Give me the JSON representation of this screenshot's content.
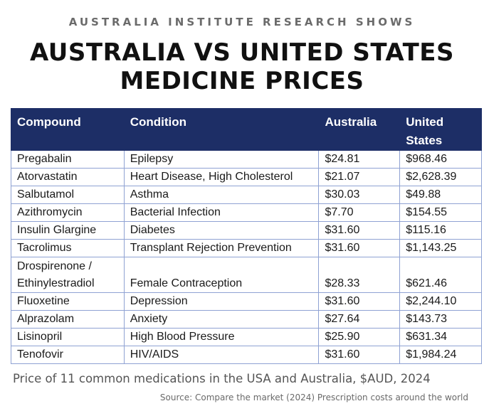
{
  "header": {
    "kicker": "AUSTRALIA INSTITUTE RESEARCH SHOWS",
    "title_line1": "AUSTRALIA VS UNITED STATES",
    "title_line2": "MEDICINE PRICES"
  },
  "table": {
    "columns": [
      "Compound",
      "Condition",
      "Australia",
      "United States"
    ],
    "header_color": "#1d2e66",
    "rows": [
      {
        "compound": "Pregabalin",
        "condition": "Epilepsy",
        "australia": "$24.81",
        "united_states": "$968.46"
      },
      {
        "compound": "Atorvastatin",
        "condition": "Heart Disease, High Cholesterol",
        "australia": "$21.07",
        "united_states": "$2,628.39"
      },
      {
        "compound": "Salbutamol",
        "condition": "Asthma",
        "australia": "$30.03",
        "united_states": "$49.88"
      },
      {
        "compound": "Azithromycin",
        "condition": "Bacterial Infection",
        "australia": "$7.70",
        "united_states": "$154.55"
      },
      {
        "compound": "Insulin Glargine",
        "condition": "Diabetes",
        "australia": "$31.60",
        "united_states": "$115.16"
      },
      {
        "compound": "Tacrolimus",
        "condition": "Transplant Rejection Prevention",
        "australia": "$31.60",
        "united_states": "$1,143.25"
      },
      {
        "compound_line1": "Drospirenone /",
        "compound_line2": "Ethinylestradiol",
        "condition": "Female Contraception",
        "australia": "$28.33",
        "united_states": "$621.46"
      },
      {
        "compound": "Fluoxetine",
        "condition": "Depression",
        "australia": "$31.60",
        "united_states": "$2,244.10"
      },
      {
        "compound": "Alprazolam",
        "condition": "Anxiety",
        "australia": "$27.64",
        "united_states": "$143.73"
      },
      {
        "compound": "Lisinopril",
        "condition": "High Blood Pressure",
        "australia": "$25.90",
        "united_states": "$631.34"
      },
      {
        "compound": "Tenofovir",
        "condition": "HIV/AIDS",
        "australia": "$31.60",
        "united_states": "$1,984.24"
      }
    ]
  },
  "caption": "Price of 11 common medications in the USA and Australia, $AUD, 2024",
  "source": "Source: Compare the market (2024) Prescription costs around the world"
}
